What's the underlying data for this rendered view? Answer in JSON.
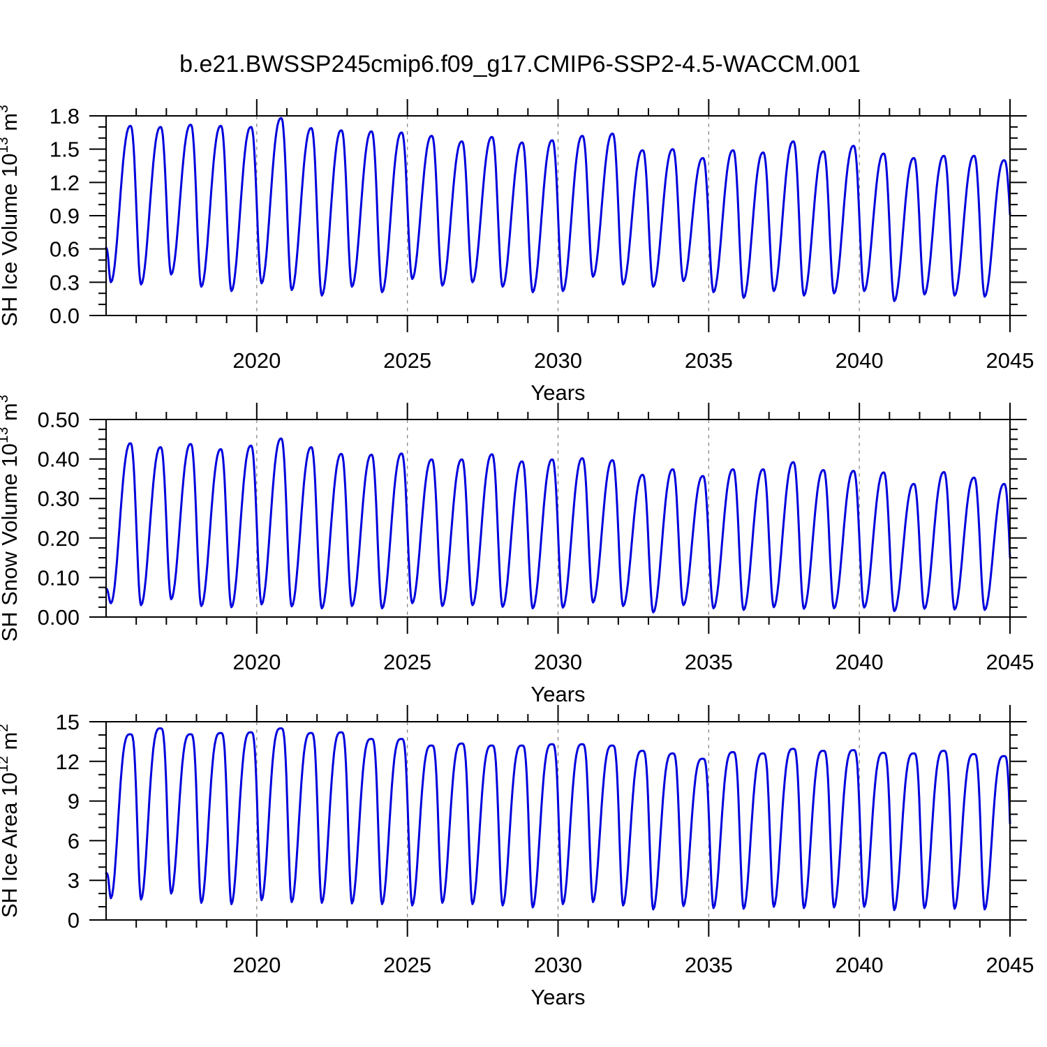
{
  "title": "b.e21.BWSSP245cmip6.f09_g17.CMIP6-SSP2-4.5-WACCM.001",
  "xlabel": "Years",
  "colors": {
    "line": "#0000dd",
    "grid": "#808080",
    "axis": "#000000"
  },
  "chart_data": [
    {
      "type": "line",
      "name": "sh-ice-volume",
      "ylabel": {
        "text": "SH Ice Volume 10",
        "sup1": "13",
        "mid": " m",
        "sup2": "3"
      },
      "ylim": [
        0,
        1.8
      ],
      "yticks": [
        {
          "v": 0.0,
          "label": "0.0"
        },
        {
          "v": 0.3,
          "label": "0.3"
        },
        {
          "v": 0.6,
          "label": "0.6"
        },
        {
          "v": 0.9,
          "label": "0.9"
        },
        {
          "v": 1.2,
          "label": "1.2"
        },
        {
          "v": 1.5,
          "label": "1.5"
        },
        {
          "v": 1.8,
          "label": "1.8"
        }
      ],
      "yminor_step": 0.1,
      "xlim": [
        2015,
        2045
      ],
      "xticks": [
        {
          "v": 2020,
          "label": "2020"
        },
        {
          "v": 2025,
          "label": "2025"
        },
        {
          "v": 2030,
          "label": "2030"
        },
        {
          "v": 2035,
          "label": "2035"
        },
        {
          "v": 2040,
          "label": "2040"
        },
        {
          "v": 2045,
          "label": "2045"
        }
      ],
      "xminor_step": 1,
      "grid_at": [
        2020,
        2025,
        2030,
        2035,
        2040
      ],
      "seasonal": {
        "year_start": 2015,
        "trough_phase": 0.16,
        "peak_phase": 0.81,
        "shape": 1.25,
        "start": [
          2015.0,
          0.61
        ],
        "end": [
          2045.0,
          0.91
        ],
        "peaks": [
          1.71,
          1.7,
          1.72,
          1.71,
          1.7,
          1.78,
          1.69,
          1.67,
          1.66,
          1.65,
          1.62,
          1.57,
          1.61,
          1.56,
          1.58,
          1.62,
          1.64,
          1.49,
          1.5,
          1.42,
          1.49,
          1.47,
          1.57,
          1.48,
          1.53,
          1.46,
          1.42,
          1.44,
          1.44,
          1.4
        ],
        "troughs": [
          0.3,
          0.28,
          0.37,
          0.26,
          0.22,
          0.29,
          0.23,
          0.18,
          0.26,
          0.21,
          0.33,
          0.27,
          0.3,
          0.26,
          0.21,
          0.22,
          0.35,
          0.28,
          0.26,
          0.31,
          0.21,
          0.16,
          0.22,
          0.18,
          0.2,
          0.22,
          0.13,
          0.19,
          0.18,
          0.17
        ]
      }
    },
    {
      "type": "line",
      "name": "sh-snow-volume",
      "ylabel": {
        "text": "SH Snow Volume 10",
        "sup1": "13",
        "mid": " m",
        "sup2": "3"
      },
      "ylim": [
        0,
        0.5
      ],
      "yticks": [
        {
          "v": 0.0,
          "label": "0.00"
        },
        {
          "v": 0.1,
          "label": "0.10"
        },
        {
          "v": 0.2,
          "label": "0.20"
        },
        {
          "v": 0.3,
          "label": "0.30"
        },
        {
          "v": 0.4,
          "label": "0.40"
        },
        {
          "v": 0.5,
          "label": "0.50"
        }
      ],
      "yminor_step": 0.025,
      "xlim": [
        2015,
        2045
      ],
      "xticks": [
        {
          "v": 2020,
          "label": "2020"
        },
        {
          "v": 2025,
          "label": "2025"
        },
        {
          "v": 2030,
          "label": "2030"
        },
        {
          "v": 2035,
          "label": "2035"
        },
        {
          "v": 2040,
          "label": "2040"
        },
        {
          "v": 2045,
          "label": "2045"
        }
      ],
      "xminor_step": 1,
      "grid_at": [
        2020,
        2025,
        2030,
        2035,
        2040
      ],
      "seasonal": {
        "year_start": 2015,
        "trough_phase": 0.16,
        "peak_phase": 0.81,
        "shape": 1.25,
        "start": [
          2015.0,
          0.072
        ],
        "end": [
          2045.0,
          0.15
        ],
        "peaks": [
          0.44,
          0.43,
          0.438,
          0.425,
          0.434,
          0.452,
          0.43,
          0.413,
          0.411,
          0.414,
          0.399,
          0.399,
          0.412,
          0.394,
          0.399,
          0.402,
          0.397,
          0.36,
          0.374,
          0.357,
          0.374,
          0.374,
          0.392,
          0.372,
          0.37,
          0.366,
          0.337,
          0.367,
          0.353,
          0.337
        ],
        "troughs": [
          0.035,
          0.03,
          0.045,
          0.028,
          0.025,
          0.032,
          0.027,
          0.022,
          0.028,
          0.022,
          0.035,
          0.028,
          0.03,
          0.026,
          0.022,
          0.024,
          0.037,
          0.028,
          0.012,
          0.03,
          0.022,
          0.018,
          0.025,
          0.021,
          0.022,
          0.024,
          0.015,
          0.021,
          0.019,
          0.018
        ]
      }
    },
    {
      "type": "line",
      "name": "sh-ice-area",
      "ylabel": {
        "text": "SH Ice Area 10",
        "sup1": "12",
        "mid": " m",
        "sup2": "2"
      },
      "ylim": [
        0,
        15
      ],
      "yticks": [
        {
          "v": 0,
          "label": "0"
        },
        {
          "v": 3,
          "label": "3"
        },
        {
          "v": 6,
          "label": "6"
        },
        {
          "v": 9,
          "label": "9"
        },
        {
          "v": 12,
          "label": "12"
        },
        {
          "v": 15,
          "label": "15"
        }
      ],
      "yminor_step": 1,
      "xlim": [
        2015,
        2045
      ],
      "xticks": [
        {
          "v": 2020,
          "label": "2020"
        },
        {
          "v": 2025,
          "label": "2025"
        },
        {
          "v": 2030,
          "label": "2030"
        },
        {
          "v": 2035,
          "label": "2035"
        },
        {
          "v": 2040,
          "label": "2040"
        },
        {
          "v": 2045,
          "label": "2045"
        }
      ],
      "xminor_step": 1,
      "grid_at": [
        2020,
        2025,
        2030,
        2035,
        2040
      ],
      "seasonal": {
        "year_start": 2015,
        "trough_phase": 0.16,
        "peak_phase": 0.81,
        "shape": 1.8,
        "start": [
          2015.0,
          3.54
        ],
        "end": [
          2045.0,
          7.3
        ],
        "peaks": [
          14.05,
          14.5,
          14.05,
          14.15,
          14.2,
          14.5,
          14.15,
          14.2,
          13.7,
          13.7,
          13.2,
          13.35,
          13.2,
          13.2,
          13.3,
          13.3,
          13.2,
          12.8,
          12.6,
          12.2,
          12.7,
          12.6,
          12.95,
          12.8,
          12.85,
          12.65,
          12.6,
          12.8,
          12.55,
          12.4
        ],
        "troughs": [
          1.65,
          1.55,
          2.0,
          1.3,
          1.2,
          1.5,
          1.35,
          1.3,
          1.25,
          1.2,
          1.1,
          1.3,
          1.2,
          1.1,
          0.95,
          1.2,
          1.35,
          1.1,
          0.8,
          1.05,
          0.9,
          0.85,
          1.0,
          0.9,
          0.95,
          1.0,
          0.75,
          0.9,
          0.85,
          0.8
        ]
      }
    }
  ]
}
